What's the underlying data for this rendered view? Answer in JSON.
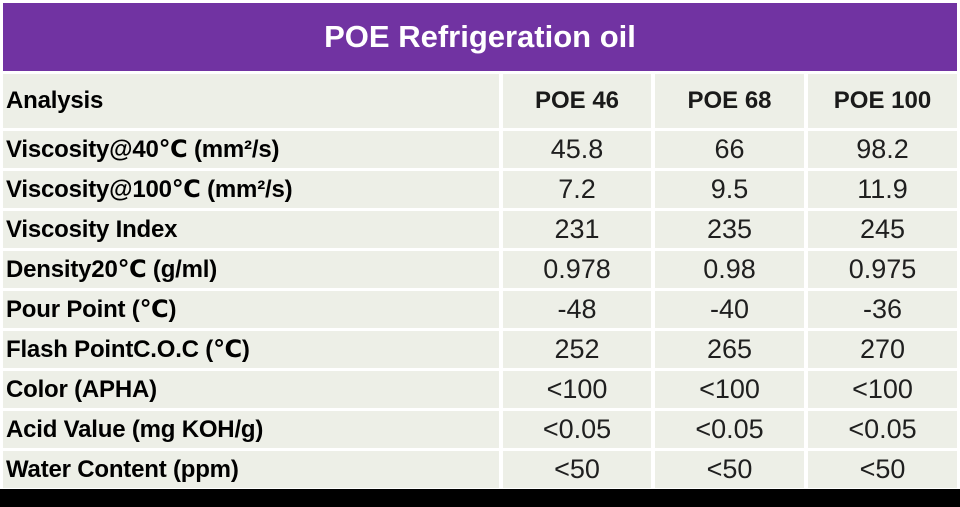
{
  "title": "POE Refrigeration oil",
  "table": {
    "corner_header": "Analysis",
    "columns": [
      "POE 46",
      "POE 68",
      "POE 100"
    ],
    "rows": [
      {
        "label": "Viscosity@40℃ (mm²/s)",
        "values": [
          "45.8",
          "66",
          "98.2"
        ]
      },
      {
        "label": "Viscosity@100℃ (mm²/s)",
        "values": [
          "7.2",
          "9.5",
          "11.9"
        ]
      },
      {
        "label": "Viscosity Index",
        "values": [
          "231",
          "235",
          "245"
        ]
      },
      {
        "label": "Density20℃ (g/ml)",
        "values": [
          "0.978",
          "0.98",
          "0.975"
        ]
      },
      {
        "label": "Pour Point (℃)",
        "values": [
          "-48",
          "-40",
          "-36"
        ]
      },
      {
        "label": "Flash PointC.O.C (℃)",
        "values": [
          "252",
          "265",
          "270"
        ]
      },
      {
        "label": "Color (APHA)",
        "values": [
          "<100",
          "<100",
          "<100"
        ]
      },
      {
        "label": "Acid Value (mg KOH/g)",
        "values": [
          "<0.05",
          "<0.05",
          "<0.05"
        ]
      },
      {
        "label": "Water Content (ppm)",
        "values": [
          "<50",
          "<50",
          "<50"
        ]
      }
    ]
  },
  "colors": {
    "banner": "#7133A2",
    "cell_background": "#EDEFE7",
    "gap": "#FFFFFF",
    "bottom_bar": "#000000",
    "title_text": "#FFFFFF",
    "label_text": "#000000",
    "value_text": "#1F1F1F"
  }
}
